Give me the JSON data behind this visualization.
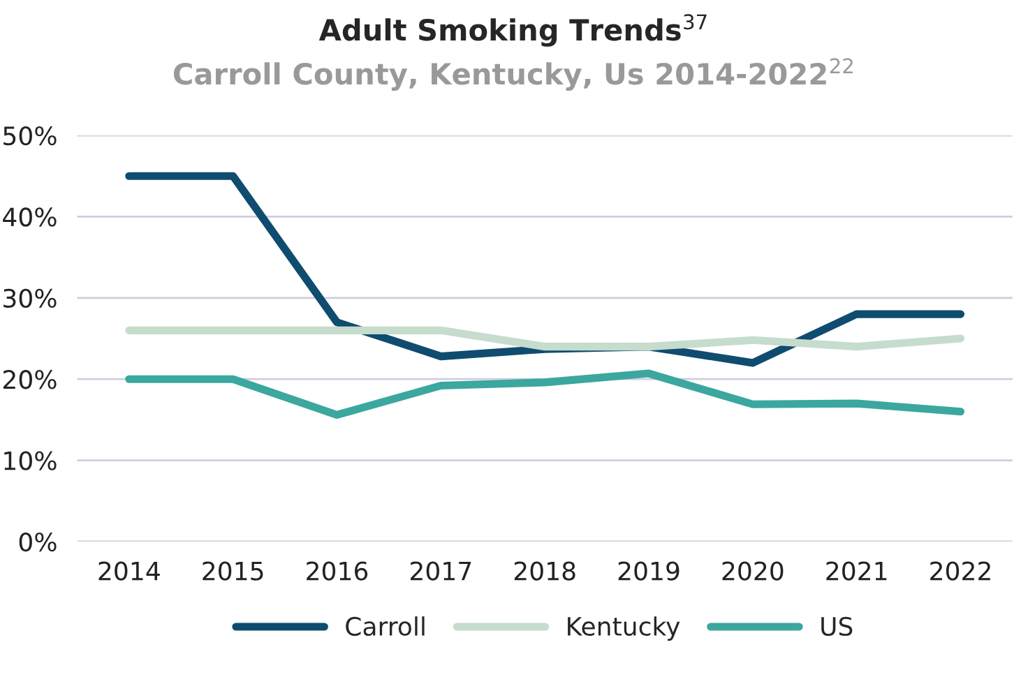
{
  "chart_data": {
    "type": "line",
    "title": "Adult Smoking Trends$^{37}$",
    "subtitle": "Carroll County, Kentucky, Us 2014-2022$^{22}$",
    "categories": [
      "2014",
      "2015",
      "2016",
      "2017",
      "2018",
      "2019",
      "2020",
      "2021",
      "2022"
    ],
    "series": [
      {
        "name": "Carroll",
        "color": "#0f4c6f",
        "values": [
          45,
          45,
          27,
          22.8,
          23.7,
          24,
          22,
          28,
          28
        ]
      },
      {
        "name": "Kentucky",
        "color": "#c6dccc",
        "values": [
          26,
          26,
          26,
          26,
          24,
          24,
          24.8,
          24,
          25
        ]
      },
      {
        "name": "US",
        "color": "#3ba79f",
        "values": [
          20,
          20,
          15.6,
          19.2,
          19.6,
          20.7,
          16.9,
          17,
          16
        ]
      }
    ],
    "ylim": [
      0,
      50
    ],
    "yticks": [
      {
        "value": 0,
        "label": "0%"
      },
      {
        "value": 10,
        "label": "10%"
      },
      {
        "value": 20,
        "label": "20%"
      },
      {
        "value": 30,
        "label": "30%"
      },
      {
        "value": 40,
        "label": "40%"
      },
      {
        "value": 50,
        "label": "50%"
      }
    ],
    "grid": "y",
    "legend": "bottom",
    "marker": "none",
    "line_style": "solid"
  }
}
